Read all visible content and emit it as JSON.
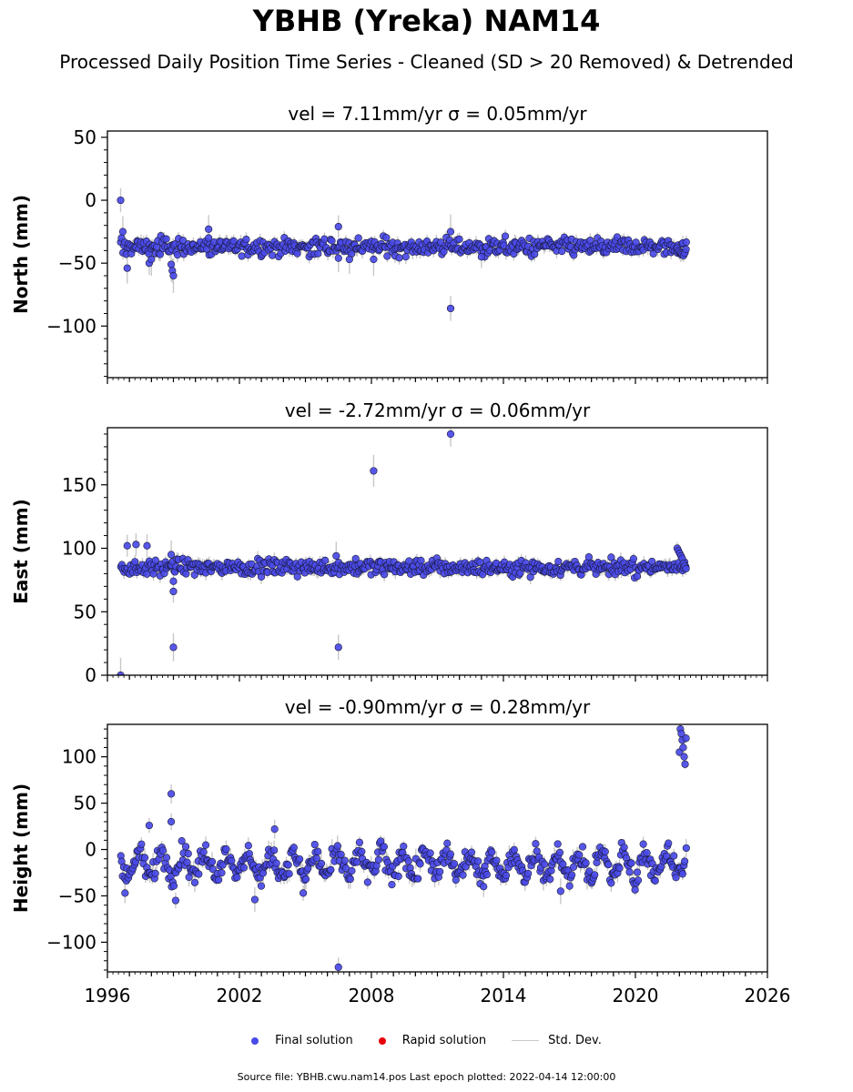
{
  "title": "YBHB (Yreka) NAM14",
  "subtitle": "Processed Daily Position Time Series - Cleaned (SD > 20 Removed) & Detrended",
  "legend": {
    "final": "Final solution",
    "rapid": "Rapid solution",
    "stddev": "Std. Dev."
  },
  "source": "Source file: YBHB.cwu.nam14.pos  Last epoch plotted: 2022-04-14 12:00:00",
  "colors": {
    "final": "#4a4ae8",
    "rapid": "#e8000b",
    "stddev": "#c8c8c8",
    "marker_edge": "#1a1a3a"
  },
  "chart_data": [
    {
      "type": "scatter",
      "title": "vel = 7.11mm/yr   σ = 0.05mm/yr",
      "ylabel": "North (mm)",
      "xlim": [
        1996,
        2026
      ],
      "ylim": [
        -141,
        55
      ],
      "yticks": [
        50,
        0,
        -50,
        -100
      ],
      "xticks": [
        1996,
        2002,
        2008,
        2014,
        2020,
        2026
      ],
      "baseline": {
        "start": 1996.6,
        "end": 2022.3,
        "y_start": -37,
        "y_end": -37,
        "spread": 3.5,
        "seasonal_amp": 0
      },
      "end_cluster": {
        "from": 2021.9,
        "to": 2022.3,
        "values": [
          -38,
          -40,
          -41,
          -42,
          -43,
          -44,
          -42,
          -39
        ]
      },
      "outliers": [
        {
          "x": 1996.6,
          "y": 0
        },
        {
          "x": 1996.7,
          "y": -25
        },
        {
          "x": 1996.9,
          "y": -54
        },
        {
          "x": 1997.9,
          "y": -50
        },
        {
          "x": 1998.0,
          "y": -47
        },
        {
          "x": 1998.9,
          "y": -51
        },
        {
          "x": 1998.95,
          "y": -56
        },
        {
          "x": 1999.0,
          "y": -60
        },
        {
          "x": 2000.6,
          "y": -23
        },
        {
          "x": 2000.6,
          "y": -30
        },
        {
          "x": 2006.5,
          "y": -21
        },
        {
          "x": 2006.5,
          "y": -46
        },
        {
          "x": 2007.0,
          "y": -47
        },
        {
          "x": 2008.1,
          "y": -47
        },
        {
          "x": 2011.6,
          "y": -25
        },
        {
          "x": 2011.6,
          "y": -86
        },
        {
          "x": 2013.0,
          "y": -45
        }
      ]
    },
    {
      "type": "scatter",
      "title": "vel = -2.72mm/yr   σ = 0.06mm/yr",
      "ylabel": "East (mm)",
      "xlim": [
        1996,
        2026
      ],
      "ylim": [
        0,
        195
      ],
      "yticks": [
        150,
        100,
        50,
        0
      ],
      "xticks": [
        1996,
        2002,
        2008,
        2014,
        2020,
        2026
      ],
      "baseline": {
        "start": 1996.6,
        "end": 2022.3,
        "y_start": 85,
        "y_end": 85,
        "spread": 3,
        "seasonal_amp": 0
      },
      "end_cluster": {
        "from": 2021.9,
        "to": 2022.3,
        "values": [
          100,
          98,
          96,
          94,
          92,
          88,
          86,
          84
        ]
      },
      "outliers": [
        {
          "x": 1996.6,
          "y": 0
        },
        {
          "x": 1996.9,
          "y": 102
        },
        {
          "x": 1997.3,
          "y": 103
        },
        {
          "x": 1997.8,
          "y": 102
        },
        {
          "x": 1998.9,
          "y": 95
        },
        {
          "x": 1999.0,
          "y": 74
        },
        {
          "x": 1999.0,
          "y": 66
        },
        {
          "x": 1999.0,
          "y": 22
        },
        {
          "x": 2006.5,
          "y": 22
        },
        {
          "x": 2006.4,
          "y": 94
        },
        {
          "x": 2008.1,
          "y": 161
        },
        {
          "x": 2011.6,
          "y": 190
        }
      ]
    },
    {
      "type": "scatter",
      "title": "vel = -0.90mm/yr   σ = 0.28mm/yr",
      "ylabel": "Height (mm)",
      "xlim": [
        1996,
        2026
      ],
      "ylim": [
        -132,
        135
      ],
      "yticks": [
        100,
        50,
        0,
        -50,
        -100
      ],
      "xticks": [
        1996,
        2002,
        2008,
        2014,
        2020,
        2026
      ],
      "baseline": {
        "start": 1996.6,
        "end": 2022.3,
        "y_start": -16,
        "y_end": -16,
        "spread": 6,
        "seasonal_amp": 12
      },
      "end_cluster": {
        "from": 2022.0,
        "to": 2022.3,
        "values": [
          105,
          130,
          125,
          118,
          110,
          100,
          92,
          120
        ]
      },
      "outliers": [
        {
          "x": 1996.8,
          "y": -47
        },
        {
          "x": 1997.9,
          "y": 26
        },
        {
          "x": 1998.9,
          "y": 60
        },
        {
          "x": 1998.9,
          "y": 30
        },
        {
          "x": 1999.1,
          "y": -55
        },
        {
          "x": 2002.7,
          "y": -54
        },
        {
          "x": 2003.6,
          "y": 22
        },
        {
          "x": 2004.9,
          "y": -47
        },
        {
          "x": 2006.5,
          "y": -127
        },
        {
          "x": 2016.6,
          "y": -45
        },
        {
          "x": 2013.1,
          "y": -40
        }
      ]
    }
  ]
}
